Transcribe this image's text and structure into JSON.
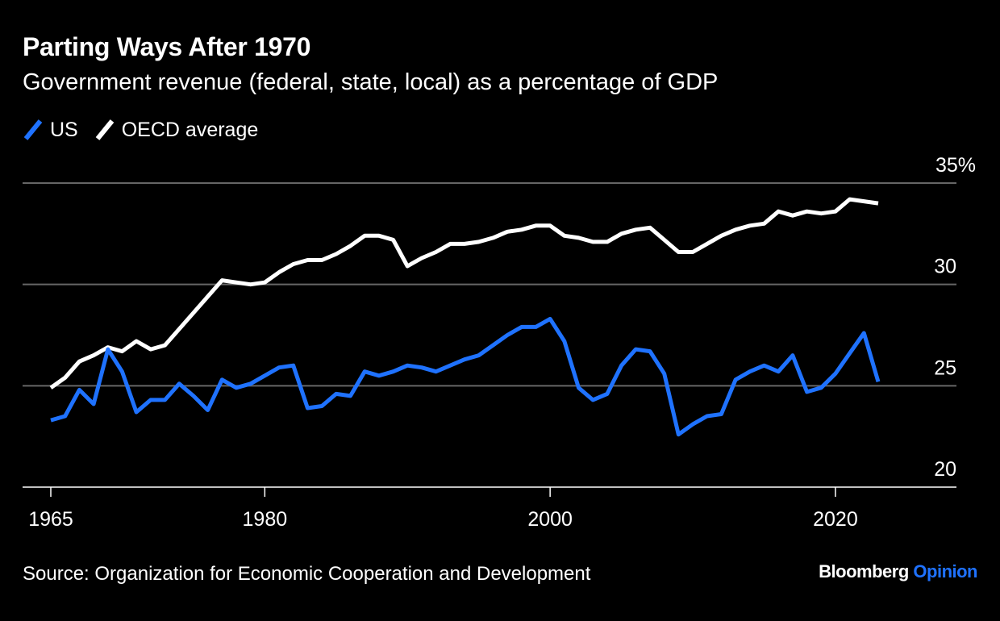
{
  "header": {
    "title": "Parting Ways After 1970",
    "subtitle": "Government revenue (federal, state, local) as a percentage of GDP"
  },
  "legend": [
    {
      "label": "US",
      "color": "#1f72ff"
    },
    {
      "label": "OECD average",
      "color": "#ffffff"
    }
  ],
  "footer": {
    "source": "Source: Organization for Economic Cooperation and Development",
    "brand_main": "Bloomberg",
    "brand_accent": "Opinion"
  },
  "colors": {
    "background": "#000000",
    "us": "#1f72ff",
    "oecd": "#ffffff",
    "grid": "#666666"
  },
  "chart_data": {
    "type": "line",
    "title": "Parting Ways After 1970",
    "subtitle": "Government revenue (federal, state, local) as a percentage of GDP",
    "xlabel": "",
    "ylabel": "",
    "xlim": [
      1965,
      2028
    ],
    "ylim": [
      20,
      35
    ],
    "x_ticks": [
      1965,
      1980,
      2000,
      2020
    ],
    "x_tick_labels": [
      "1965",
      "1980",
      "2000",
      "2020"
    ],
    "y_ticks": [
      20,
      25,
      30,
      35
    ],
    "y_tick_labels": [
      "20",
      "25",
      "30",
      "35%"
    ],
    "grid": "horizontal",
    "legend_position": "top-left",
    "x": [
      1965,
      1966,
      1967,
      1968,
      1969,
      1970,
      1971,
      1972,
      1973,
      1974,
      1975,
      1976,
      1977,
      1978,
      1979,
      1980,
      1981,
      1982,
      1983,
      1984,
      1985,
      1986,
      1987,
      1988,
      1989,
      1990,
      1991,
      1992,
      1993,
      1994,
      1995,
      1996,
      1997,
      1998,
      1999,
      2000,
      2001,
      2002,
      2003,
      2004,
      2005,
      2006,
      2007,
      2008,
      2009,
      2010,
      2011,
      2012,
      2013,
      2014,
      2015,
      2016,
      2017,
      2018,
      2019,
      2020,
      2021,
      2022,
      2023
    ],
    "series": [
      {
        "name": "US",
        "color": "#1f72ff",
        "values": [
          23.3,
          23.5,
          24.8,
          24.1,
          26.8,
          25.7,
          23.7,
          24.3,
          24.3,
          25.1,
          24.5,
          23.8,
          25.3,
          24.9,
          25.1,
          25.5,
          25.9,
          26.0,
          23.9,
          24.0,
          24.6,
          24.5,
          25.7,
          25.5,
          25.7,
          26.0,
          25.9,
          25.7,
          26.0,
          26.3,
          26.5,
          27.0,
          27.5,
          27.9,
          27.9,
          28.3,
          27.2,
          24.9,
          24.3,
          24.6,
          26.0,
          26.8,
          26.7,
          25.6,
          22.6,
          23.1,
          23.5,
          23.6,
          25.3,
          25.7,
          26.0,
          25.7,
          26.5,
          24.7,
          24.9,
          25.6,
          26.6,
          27.6,
          25.2
        ]
      },
      {
        "name": "OECD average",
        "color": "#ffffff",
        "values": [
          24.9,
          25.4,
          26.2,
          26.5,
          26.9,
          26.7,
          27.2,
          26.8,
          27.0,
          27.8,
          28.6,
          29.4,
          30.2,
          30.1,
          30.0,
          30.1,
          30.6,
          31.0,
          31.2,
          31.2,
          31.5,
          31.9,
          32.4,
          32.4,
          32.2,
          30.9,
          31.3,
          31.6,
          32.0,
          32.0,
          32.1,
          32.3,
          32.6,
          32.7,
          32.9,
          32.9,
          32.4,
          32.3,
          32.1,
          32.1,
          32.5,
          32.7,
          32.8,
          32.2,
          31.6,
          31.6,
          32.0,
          32.4,
          32.7,
          32.9,
          33.0,
          33.6,
          33.4,
          33.6,
          33.5,
          33.6,
          34.2,
          34.1,
          34.0
        ]
      }
    ]
  }
}
